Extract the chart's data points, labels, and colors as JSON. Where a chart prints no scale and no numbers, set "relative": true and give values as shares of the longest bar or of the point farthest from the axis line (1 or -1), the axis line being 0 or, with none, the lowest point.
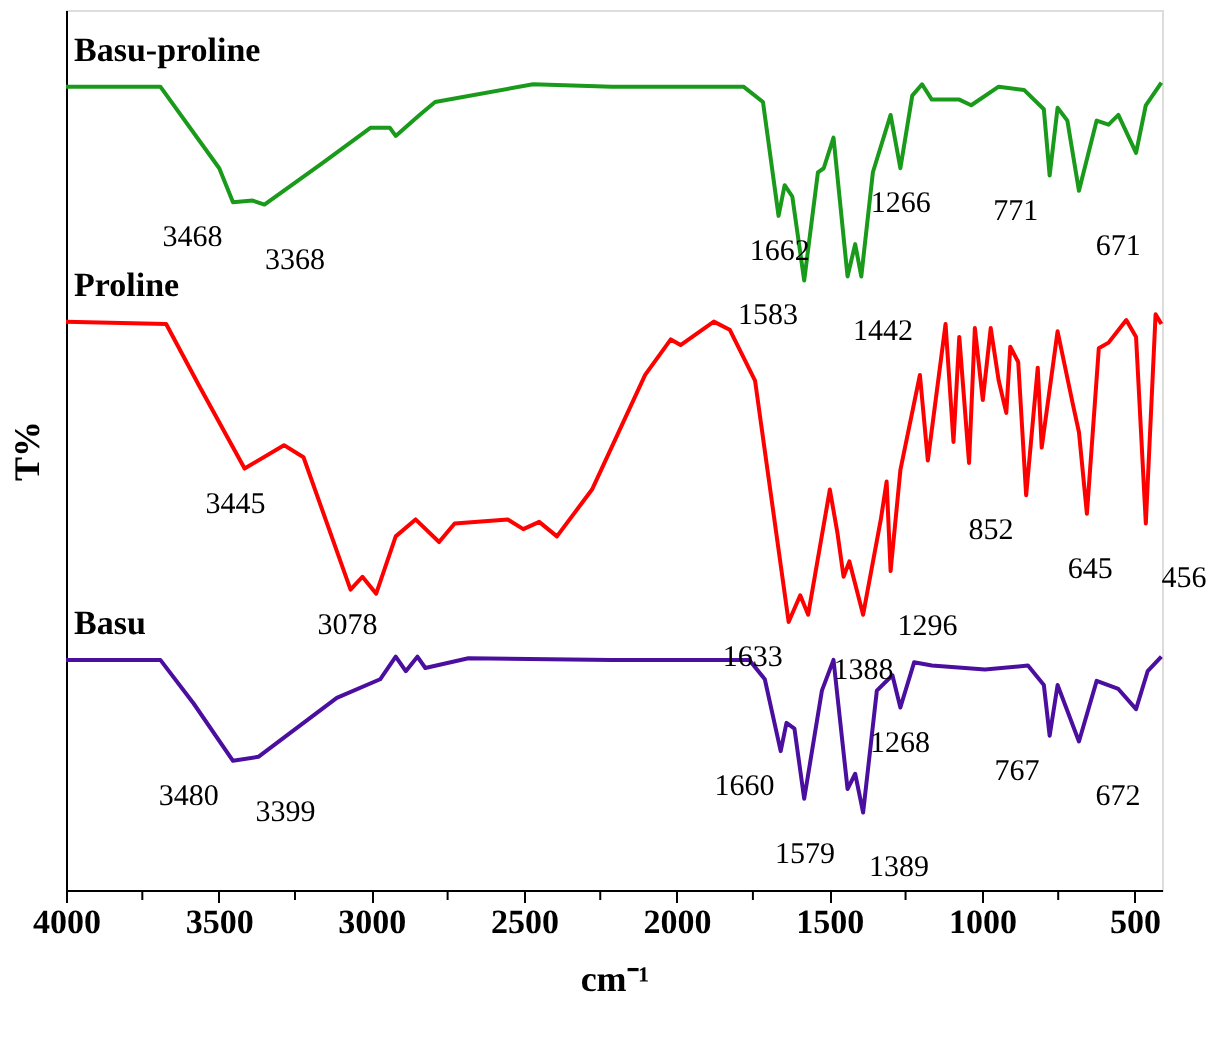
{
  "chart_data": {
    "type": "line",
    "relative": true,
    "xlabel": "cm⁻¹",
    "ylabel": "T%",
    "grid": false,
    "legend": false,
    "xlim": [
      4000,
      410
    ],
    "xticks": [
      4000,
      {
        "value": 3750,
        "label": null
      },
      3500,
      {
        "value": 3250,
        "label": null
      },
      3000,
      {
        "value": 2750,
        "label": null
      },
      2500,
      {
        "value": 2250,
        "label": null
      },
      2000,
      {
        "value": 1750,
        "label": null
      },
      1500,
      {
        "value": 1250,
        "label": null
      },
      1000,
      {
        "value": 750,
        "label": null
      },
      500
    ],
    "series": [
      {
        "name": "Basu-proline",
        "color": "#1a9a1a",
        "x": [
          4000,
          3691,
          3498,
          3453,
          3389,
          3350,
          3158,
          3003,
          2939,
          2920,
          2842,
          2791,
          2470,
          2212,
          1781,
          1717,
          1666,
          1646,
          1621,
          1582,
          1537,
          1518,
          1486,
          1440,
          1415,
          1395,
          1357,
          1299,
          1267,
          1228,
          1196,
          1164,
          1074,
          1035,
          945,
          862,
          797,
          778,
          752,
          720,
          682,
          624,
          585,
          553,
          495,
          463,
          412
        ],
        "values": [
          0.995,
          0.995,
          0.894,
          0.852,
          0.854,
          0.849,
          0.901,
          0.944,
          0.944,
          0.934,
          0.96,
          0.976,
          0.998,
          0.995,
          0.995,
          0.976,
          0.835,
          0.873,
          0.859,
          0.755,
          0.889,
          0.894,
          0.932,
          0.76,
          0.8,
          0.76,
          0.889,
          0.96,
          0.894,
          0.984,
          0.998,
          0.979,
          0.979,
          0.972,
          0.995,
          0.991,
          0.967,
          0.885,
          0.969,
          0.953,
          0.866,
          0.953,
          0.948,
          0.96,
          0.913,
          0.972,
          1.0
        ]
      },
      {
        "name": "Proline",
        "color": "#ff0000",
        "x": [
          4000,
          3672,
          3563,
          3415,
          3286,
          3222,
          3068,
          3029,
          2984,
          2920,
          2855,
          2778,
          2727,
          2553,
          2502,
          2450,
          2392,
          2277,
          2103,
          2019,
          1987,
          1878,
          1826,
          1743,
          1633,
          1595,
          1569,
          1498,
          1473,
          1453,
          1434,
          1389,
          1331,
          1312,
          1299,
          1267,
          1203,
          1177,
          1119,
          1093,
          1074,
          1042,
          1023,
          997,
          971,
          945,
          920,
          907,
          881,
          855,
          817,
          804,
          752,
          701,
          682,
          656,
          617,
          585,
          527,
          495,
          463,
          431,
          412
        ],
        "values": [
          0.704,
          0.701,
          0.624,
          0.522,
          0.551,
          0.536,
          0.372,
          0.388,
          0.367,
          0.438,
          0.459,
          0.431,
          0.454,
          0.459,
          0.447,
          0.456,
          0.438,
          0.496,
          0.638,
          0.682,
          0.675,
          0.704,
          0.694,
          0.631,
          0.332,
          0.365,
          0.341,
          0.496,
          0.442,
          0.388,
          0.407,
          0.341,
          0.459,
          0.506,
          0.395,
          0.52,
          0.638,
          0.532,
          0.701,
          0.555,
          0.685,
          0.529,
          0.696,
          0.607,
          0.696,
          0.631,
          0.591,
          0.673,
          0.654,
          0.489,
          0.647,
          0.548,
          0.692,
          0.6,
          0.567,
          0.466,
          0.671,
          0.678,
          0.706,
          0.685,
          0.454,
          0.713,
          0.701
        ]
      },
      {
        "name": "Basu",
        "color": "#4b0fa0",
        "x": [
          4000,
          3691,
          3582,
          3453,
          3370,
          3113,
          2971,
          2920,
          2887,
          2849,
          2823,
          2682,
          2212,
          1762,
          1711,
          1659,
          1640,
          1614,
          1582,
          1524,
          1486,
          1440,
          1415,
          1389,
          1344,
          1293,
          1267,
          1222,
          1164,
          990,
          849,
          797,
          778,
          752,
          682,
          624,
          553,
          495,
          457,
          412
        ],
        "values": [
          0.285,
          0.285,
          0.231,
          0.16,
          0.165,
          0.238,
          0.261,
          0.289,
          0.271,
          0.289,
          0.275,
          0.287,
          0.285,
          0.285,
          0.261,
          0.172,
          0.207,
          0.2,
          0.113,
          0.247,
          0.285,
          0.125,
          0.144,
          0.096,
          0.247,
          0.266,
          0.226,
          0.282,
          0.278,
          0.273,
          0.278,
          0.254,
          0.191,
          0.254,
          0.184,
          0.259,
          0.249,
          0.224,
          0.271,
          0.289
        ]
      }
    ],
    "annotations": [
      {
        "text": "3468",
        "x": 3468,
        "y": 0.852
      },
      {
        "text": "3368",
        "x": 3368,
        "y": 0.849
      },
      {
        "text": "1662",
        "x": 1662,
        "y": 0.835
      },
      {
        "text": "1583",
        "x": 1583,
        "y": 0.755
      },
      {
        "text": "1442",
        "x": 1442,
        "y": 0.76
      },
      {
        "text": "1266",
        "x": 1266,
        "y": 0.894
      },
      {
        "text": "771",
        "x": 771,
        "y": 0.885
      },
      {
        "text": "671",
        "x": 671,
        "y": 0.866
      },
      {
        "text": "3445",
        "x": 3445,
        "y": 0.522
      },
      {
        "text": "3078",
        "x": 3078,
        "y": 0.372
      },
      {
        "text": "1633",
        "x": 1633,
        "y": 0.332
      },
      {
        "text": "1388",
        "x": 1388,
        "y": 0.341
      },
      {
        "text": "1296",
        "x": 1296,
        "y": 0.395
      },
      {
        "text": "852",
        "x": 852,
        "y": 0.489
      },
      {
        "text": "645",
        "x": 645,
        "y": 0.466
      },
      {
        "text": "456",
        "x": 456,
        "y": 0.454
      },
      {
        "text": "3480",
        "x": 3480,
        "y": 0.16
      },
      {
        "text": "3399",
        "x": 3399,
        "y": 0.165
      },
      {
        "text": "1660",
        "x": 1660,
        "y": 0.172
      },
      {
        "text": "1579",
        "x": 1579,
        "y": 0.113
      },
      {
        "text": "1389",
        "x": 1389,
        "y": 0.096
      },
      {
        "text": "1268",
        "x": 1268,
        "y": 0.226
      },
      {
        "text": "767",
        "x": 767,
        "y": 0.191
      },
      {
        "text": "672",
        "x": 672,
        "y": 0.184
      }
    ]
  }
}
